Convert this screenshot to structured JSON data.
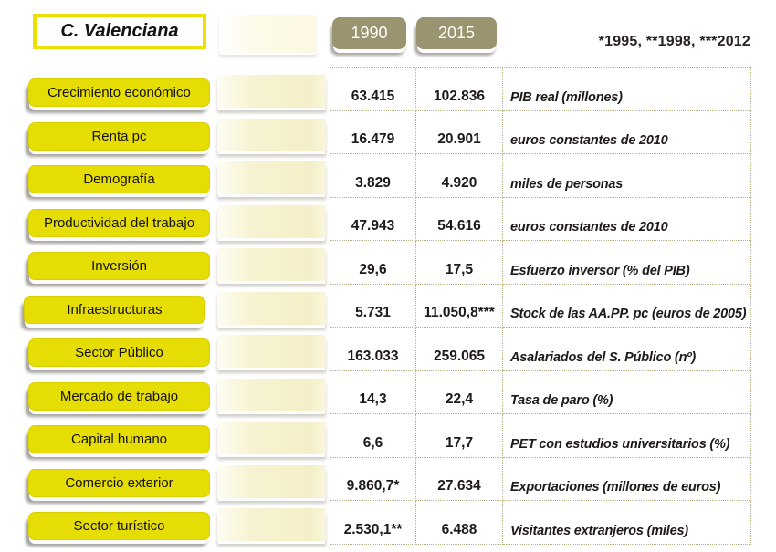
{
  "header": {
    "region_title": "C. Valenciana",
    "years": [
      "1990",
      "2015"
    ],
    "footnote": "*1995, **1998, ***2012"
  },
  "colors": {
    "yellow": "#e6dd05",
    "olive": "#9a9470",
    "title-border": "#ece000",
    "dots": "#b9b38b",
    "ink": "#1d1a18"
  },
  "rows": [
    {
      "category": "Crecimiento económico",
      "v1990": "63.415",
      "v2015": "102.836",
      "desc": "PIB real (millones)"
    },
    {
      "category": "Renta pc",
      "v1990": "16.479",
      "v2015": "20.901",
      "desc": "euros constantes de 2010"
    },
    {
      "category": "Demografía",
      "v1990": "3.829",
      "v2015": "4.920",
      "desc": "miles de personas"
    },
    {
      "category": "Productividad del trabajo",
      "v1990": "47.943",
      "v2015": "54.616",
      "desc": "euros constantes de 2010"
    },
    {
      "category": "Inversión",
      "v1990": "29,6",
      "v2015": "17,5",
      "desc": "Esfuerzo inversor (% del PIB)"
    },
    {
      "category": "Infraestructuras",
      "v1990": "5.731",
      "v2015": "11.050,8***",
      "desc": "Stock de las AA.PP. pc (euros de 2005)"
    },
    {
      "category": "Sector Público",
      "v1990": "163.033",
      "v2015": "259.065",
      "desc": "Asalariados del S. Público (nº)"
    },
    {
      "category": "Mercado de trabajo",
      "v1990": "14,3",
      "v2015": "22,4",
      "desc": "Tasa de paro (%)"
    },
    {
      "category": "Capital humano",
      "v1990": "6,6",
      "v2015": "17,7",
      "desc": "PET con estudios universitarios (%)"
    },
    {
      "category": "Comercio exterior",
      "v1990": "9.860,7*",
      "v2015": "27.634",
      "desc": "Exportaciones (millones de euros)"
    },
    {
      "category": "Sector turístico",
      "v1990": "2.530,1**",
      "v2015": "6.488",
      "desc": "Visitantes extranjeros (miles)"
    }
  ],
  "chart_data": {
    "type": "table",
    "title": "C. Valenciana",
    "footnote": "*1995, **1998, ***2012",
    "categories": [
      "Crecimiento económico",
      "Renta pc",
      "Demografía",
      "Productividad del trabajo",
      "Inversión",
      "Infraestructuras",
      "Sector Público",
      "Mercado de trabajo",
      "Capital humano",
      "Comercio exterior",
      "Sector turístico"
    ],
    "series": [
      {
        "name": "1990",
        "values": [
          63415,
          16479,
          3829,
          47943,
          29.6,
          5731,
          163033,
          14.3,
          6.6,
          9860.7,
          2530.1
        ]
      },
      {
        "name": "2015",
        "values": [
          102836,
          20901,
          4920,
          54616,
          17.5,
          11050.8,
          259065,
          22.4,
          17.7,
          27634,
          6488
        ]
      }
    ],
    "units": [
      "PIB real (millones)",
      "euros constantes de 2010",
      "miles de personas",
      "euros constantes de 2010",
      "Esfuerzo inversor (% del PIB)",
      "Stock de las AA.PP. pc (euros de 2005)",
      "Asalariados del S. Público (nº)",
      "Tasa de paro (%)",
      "PET con estudios universitarios (%)",
      "Exportaciones (millones de euros)",
      "Visitantes extranjeros (miles)"
    ],
    "value_notes": {
      "9.860,7*": "1995",
      "2.530,1**": "1998",
      "11.050,8***": "2012"
    }
  }
}
